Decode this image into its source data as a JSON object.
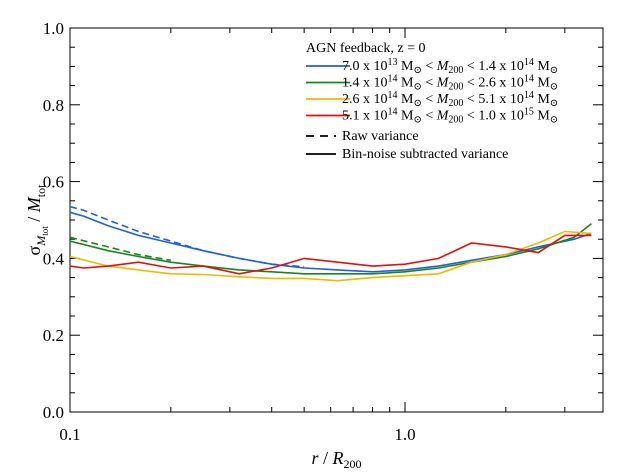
{
  "chart_data": {
    "type": "line",
    "xscale": "log",
    "xlim": [
      0.1,
      3.9
    ],
    "ylim": [
      0.0,
      1.0
    ],
    "x_ticks": [
      0.1,
      1.0
    ],
    "x_tick_labels": [
      "0.1",
      "1.0"
    ],
    "y_ticks": [
      0.0,
      0.2,
      0.4,
      0.6,
      0.8,
      1.0
    ],
    "y_tick_labels": [
      "0.0",
      "0.2",
      "0.4",
      "0.6",
      "0.8",
      "1.0"
    ],
    "xlabel": "r / R200",
    "ylabel": "σ M_tot / M_tot",
    "grid": false,
    "legend_position": "top-right",
    "legend_title": "AGN feedback, z = 0",
    "series": [
      {
        "name": "7.0 x 10^13 M⊙ < M200 < 1.4 x 10^14 M⊙",
        "label": {
          "a": "7.0 x 10",
          "ae": "13",
          "b": " M",
          "c": " < ",
          "d": "M",
          "ds": "200",
          "e": " < 1.4 x 10",
          "ee": "14",
          "f": " M"
        },
        "color": "#1f5fe0",
        "solid": {
          "x": [
            0.1,
            0.11,
            0.13,
            0.16,
            0.2,
            0.25,
            0.32,
            0.4,
            0.5,
            0.63,
            0.8,
            1.0,
            1.26,
            1.58,
            2.0,
            2.5,
            3.2,
            3.6
          ],
          "y": [
            0.52,
            0.51,
            0.485,
            0.46,
            0.44,
            0.42,
            0.4,
            0.385,
            0.375,
            0.37,
            0.365,
            0.37,
            0.38,
            0.395,
            0.41,
            0.43,
            0.45,
            0.465
          ]
        },
        "dashed": {
          "x": [
            0.1,
            0.11,
            0.13,
            0.16,
            0.2,
            0.25,
            0.32,
            0.4,
            0.5
          ],
          "y": [
            0.535,
            0.525,
            0.5,
            0.47,
            0.445,
            0.42,
            0.4,
            0.385,
            0.378
          ]
        }
      },
      {
        "name": "1.4 x 10^14 M⊙ < M200 < 2.6 x 10^14 M⊙",
        "label": {
          "a": "1.4 x 10",
          "ae": "14",
          "b": " M",
          "c": " < ",
          "d": "M",
          "ds": "200",
          "e": " < 2.6 x 10",
          "ee": "14",
          "f": " M"
        },
        "color": "#18851e",
        "solid": {
          "x": [
            0.1,
            0.13,
            0.16,
            0.2,
            0.25,
            0.32,
            0.4,
            0.5,
            0.63,
            0.8,
            1.0,
            1.26,
            1.58,
            2.0,
            2.5,
            3.2,
            3.6
          ],
          "y": [
            0.445,
            0.42,
            0.405,
            0.39,
            0.38,
            0.37,
            0.365,
            0.36,
            0.36,
            0.36,
            0.365,
            0.375,
            0.39,
            0.405,
            0.425,
            0.455,
            0.49
          ]
        },
        "dashed": {
          "x": [
            0.1,
            0.13,
            0.16,
            0.2
          ],
          "y": [
            0.455,
            0.43,
            0.41,
            0.395
          ]
        }
      },
      {
        "name": "2.6 x 10^14 M⊙ < M200 < 5.1 x 10^14 M⊙",
        "label": {
          "a": "2.6 x 10",
          "ae": "14",
          "b": " M",
          "c": " < ",
          "d": "M",
          "ds": "200",
          "e": " < 5.1 x 10",
          "ee": "14",
          "f": " M"
        },
        "color": "#f2b800",
        "solid": {
          "x": [
            0.1,
            0.13,
            0.16,
            0.2,
            0.25,
            0.32,
            0.4,
            0.5,
            0.63,
            0.8,
            1.0,
            1.26,
            1.58,
            2.0,
            2.5,
            3.0,
            3.6
          ],
          "y": [
            0.405,
            0.38,
            0.37,
            0.36,
            0.358,
            0.352,
            0.348,
            0.348,
            0.342,
            0.35,
            0.355,
            0.36,
            0.39,
            0.41,
            0.44,
            0.47,
            0.465
          ]
        }
      },
      {
        "name": "5.1 x 10^14 M⊙ < M200 < 1.0 x 10^15 M⊙",
        "label": {
          "a": "5.1 x 10",
          "ae": "14",
          "b": " M",
          "c": " < ",
          "d": "M",
          "ds": "200",
          "e": " < 1.0 x 10",
          "ee": "15",
          "f": " M"
        },
        "color": "#e01010",
        "solid": {
          "x": [
            0.1,
            0.11,
            0.13,
            0.16,
            0.2,
            0.25,
            0.32,
            0.4,
            0.5,
            0.63,
            0.8,
            1.0,
            1.26,
            1.58,
            2.0,
            2.5,
            3.0,
            3.6
          ],
          "y": [
            0.38,
            0.375,
            0.38,
            0.39,
            0.375,
            0.38,
            0.36,
            0.375,
            0.4,
            0.39,
            0.38,
            0.385,
            0.4,
            0.44,
            0.43,
            0.415,
            0.46,
            0.46
          ]
        }
      }
    ],
    "style_legend": [
      {
        "name": "Raw variance",
        "style": "dashed"
      },
      {
        "name": "Bin-noise subtracted variance",
        "style": "solid"
      }
    ]
  }
}
